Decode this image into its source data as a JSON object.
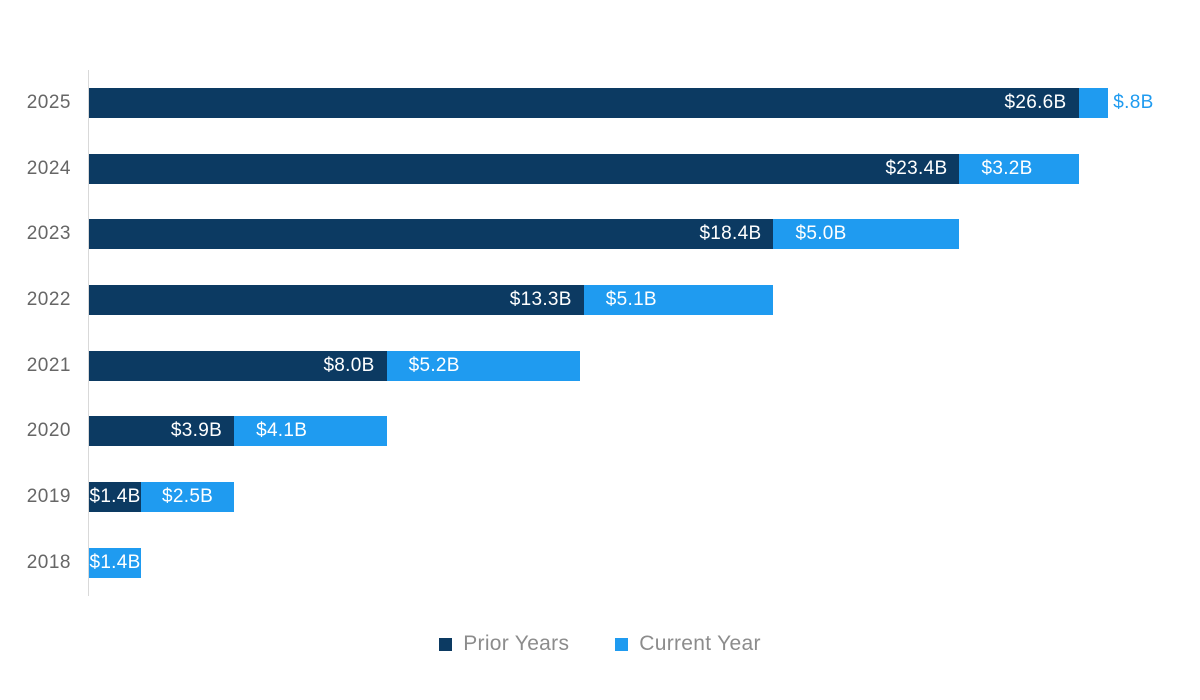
{
  "chart_data": {
    "type": "bar",
    "orientation": "horizontal",
    "stacked": true,
    "value_unit": "billions USD",
    "xlim": [
      0,
      27.4
    ],
    "grid": false,
    "legend_position": "bottom-center",
    "categories": [
      "2025",
      "2024",
      "2023",
      "2022",
      "2021",
      "2020",
      "2019",
      "2018"
    ],
    "series": [
      {
        "name": "Prior Years",
        "color": "#0c3a62",
        "values": [
          26.6,
          23.4,
          18.4,
          13.3,
          8.0,
          3.9,
          1.4,
          null
        ]
      },
      {
        "name": "Current Year",
        "color": "#1f9bf0",
        "values": [
          0.8,
          3.2,
          5.0,
          5.1,
          5.2,
          4.1,
          2.5,
          1.4
        ]
      }
    ],
    "rows": [
      {
        "year": "2025",
        "prior": 26.6,
        "prior_label": "$26.6B",
        "current": 0.8,
        "current_label": "$.8B",
        "current_label_pos": "outside"
      },
      {
        "year": "2024",
        "prior": 23.4,
        "prior_label": "$23.4B",
        "current": 3.2,
        "current_label": "$3.2B",
        "current_label_pos": "inside"
      },
      {
        "year": "2023",
        "prior": 18.4,
        "prior_label": "$18.4B",
        "current": 5.0,
        "current_label": "$5.0B",
        "current_label_pos": "inside"
      },
      {
        "year": "2022",
        "prior": 13.3,
        "prior_label": "$13.3B",
        "current": 5.1,
        "current_label": "$5.1B",
        "current_label_pos": "inside"
      },
      {
        "year": "2021",
        "prior": 8.0,
        "prior_label": "$8.0B",
        "current": 5.2,
        "current_label": "$5.2B",
        "current_label_pos": "inside"
      },
      {
        "year": "2020",
        "prior": 3.9,
        "prior_label": "$3.9B",
        "current": 4.1,
        "current_label": "$4.1B",
        "current_label_pos": "inside"
      },
      {
        "year": "2019",
        "prior": 1.4,
        "prior_label": "$1.4B",
        "current": 2.5,
        "current_label": "$2.5B",
        "current_label_pos": "inside"
      },
      {
        "year": "2018",
        "prior": null,
        "prior_label": "",
        "current": 1.4,
        "current_label": "$1.4B",
        "current_label_pos": "inside"
      }
    ]
  },
  "colors": {
    "prior_years": "#0c3a62",
    "current_year": "#1f9bf0",
    "year_label_text": "#666666",
    "legend_text": "#8c8c8c",
    "axis_line": "#d9d9d9",
    "bar_value_text": "#ffffff"
  },
  "legend": {
    "items": [
      {
        "label": "Prior Years",
        "color": "#0c3a62"
      },
      {
        "label": "Current Year",
        "color": "#1f9bf0"
      }
    ]
  }
}
